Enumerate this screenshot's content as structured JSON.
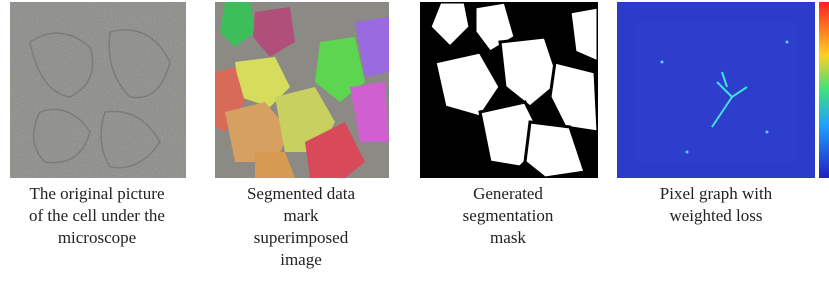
{
  "panels": [
    {
      "caption": [
        "The original picture",
        "of the cell under the",
        "microscope"
      ]
    },
    {
      "caption": [
        "Segmented data",
        "mark",
        "superimposed",
        "image"
      ]
    },
    {
      "caption": [
        "Generated",
        "segmentation",
        "mask"
      ]
    },
    {
      "caption": [
        "Pixel graph with",
        "weighted loss"
      ]
    }
  ]
}
